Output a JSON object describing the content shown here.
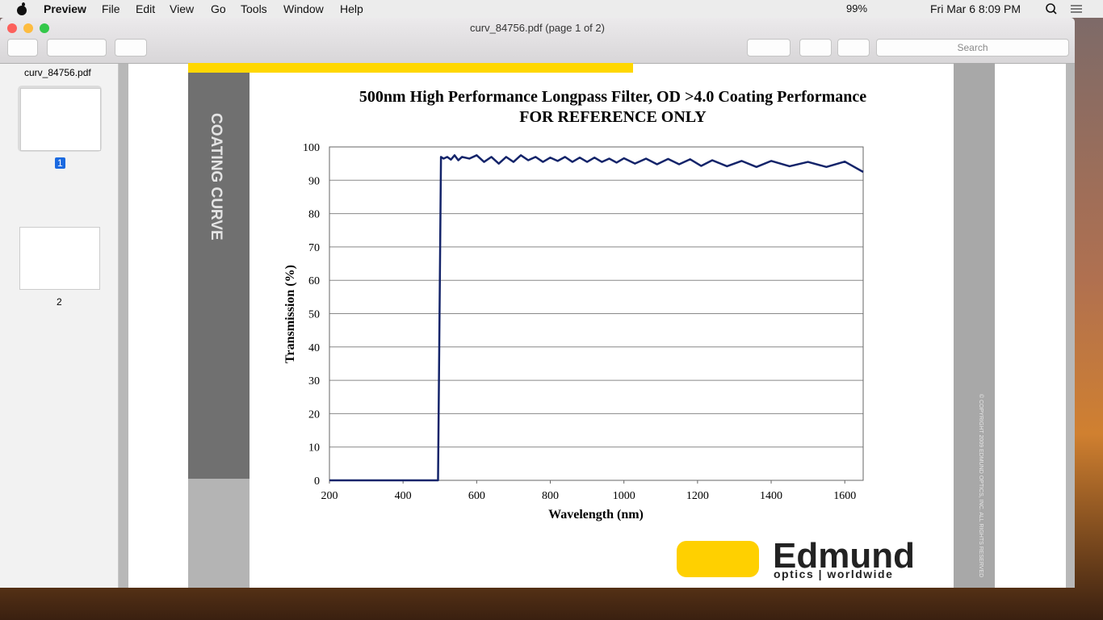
{
  "menubar": {
    "app": "Preview",
    "menus": [
      "File",
      "Edit",
      "View",
      "Go",
      "Tools",
      "Window",
      "Help"
    ],
    "battery": "99%",
    "datetime": "Fri Mar 6  8:09 PM"
  },
  "window": {
    "title": "curv_84756.pdf (page 1 of 2)",
    "search_placeholder": "Search"
  },
  "sidebar": {
    "file": "curv_84756.pdf",
    "pages": [
      "1",
      "2"
    ]
  },
  "document": {
    "side_label": "COATING CURVE",
    "copyright": "© COPYRIGHT 2009 EDMUND OPTICS, INC. ALL RIGHTS RESERVED",
    "logo_name": "Edmund",
    "logo_tagline": "optics | worldwide"
  },
  "chart_data": {
    "type": "line",
    "title": "500nm High Performance Longpass Filter,  OD >4.0 Coating Performance",
    "subtitle": "FOR REFERENCE ONLY",
    "xlabel": "Wavelength (nm)",
    "ylabel": "Transmission (%)",
    "xlim": [
      200,
      1650
    ],
    "xticks": [
      200,
      400,
      600,
      800,
      1000,
      1200,
      1400,
      1600
    ],
    "ylim": [
      0,
      100
    ],
    "yticks": [
      0,
      10,
      20,
      30,
      40,
      50,
      60,
      70,
      80,
      90,
      100
    ],
    "grid": true,
    "x": [
      200,
      490,
      495,
      503,
      510,
      520,
      530,
      540,
      550,
      560,
      580,
      600,
      620,
      640,
      660,
      680,
      700,
      720,
      740,
      760,
      780,
      800,
      820,
      840,
      860,
      880,
      900,
      920,
      940,
      960,
      980,
      1000,
      1030,
      1060,
      1090,
      1120,
      1150,
      1180,
      1210,
      1240,
      1280,
      1320,
      1360,
      1400,
      1450,
      1500,
      1550,
      1600,
      1650
    ],
    "series": [
      {
        "name": "Transmission",
        "color": "#14246a",
        "values": [
          0,
          0,
          0,
          97,
          96.5,
          97,
          96.2,
          97.5,
          96,
          97,
          96.5,
          97.5,
          95.5,
          97,
          95,
          97,
          95.5,
          97.5,
          96,
          97,
          95.5,
          96.8,
          95.8,
          97,
          95.5,
          96.8,
          95.5,
          96.8,
          95.5,
          96.5,
          95.3,
          96.6,
          95,
          96.5,
          94.8,
          96.4,
          94.8,
          96.3,
          94.3,
          96,
          94.2,
          95.8,
          94,
          95.8,
          94.2,
          95.5,
          94,
          95.6,
          92.5
        ]
      }
    ]
  }
}
